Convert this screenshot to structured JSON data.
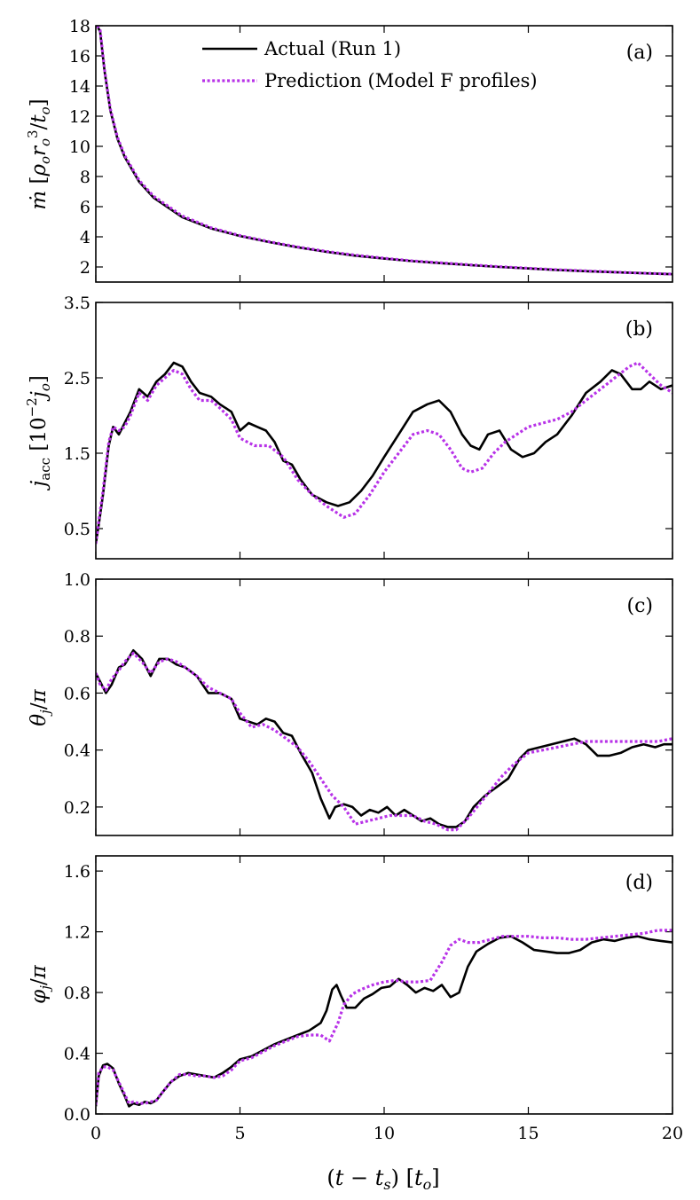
{
  "figure": {
    "xlabel": "(t − t_s) [t_o]",
    "xlim": [
      0,
      20
    ],
    "xticks": [
      0,
      5,
      10,
      15,
      20
    ]
  },
  "legend": {
    "actual_label": "Actual (Run 1)",
    "prediction_label": "Prediction (Model F profiles)",
    "actual_color": "#000000",
    "prediction_color": "#b833e8"
  },
  "chart_data": [
    {
      "type": "line",
      "panel": "(a)",
      "ylabel": "ṁ [ρ_o r_o^3 / t_o]",
      "ylim": [
        1.0,
        18.0
      ],
      "yticks": [
        2,
        4,
        6,
        8,
        10,
        12,
        14,
        16,
        18
      ],
      "series": [
        {
          "name": "Actual (Run 1)",
          "x": [
            0.05,
            0.15,
            0.3,
            0.5,
            0.75,
            1.0,
            1.5,
            2.0,
            3.0,
            4.0,
            5.0,
            6.0,
            7.0,
            8.0,
            9.0,
            10.0,
            11.0,
            12.0,
            13.0,
            14.0,
            15.0,
            16.0,
            17.0,
            18.0,
            19.0,
            20.0
          ],
          "y": [
            18.0,
            17.6,
            15.0,
            12.4,
            10.5,
            9.3,
            7.65,
            6.6,
            5.3,
            4.55,
            4.05,
            3.65,
            3.3,
            3.0,
            2.75,
            2.55,
            2.38,
            2.25,
            2.12,
            2.0,
            1.9,
            1.8,
            1.72,
            1.65,
            1.58,
            1.52
          ]
        },
        {
          "name": "Prediction (Model F profiles)",
          "x": [
            0.05,
            0.15,
            0.3,
            0.5,
            0.75,
            1.0,
            1.5,
            2.0,
            3.0,
            4.0,
            5.0,
            6.0,
            7.0,
            8.0,
            9.0,
            10.0,
            11.0,
            12.0,
            13.0,
            14.0,
            15.0,
            16.0,
            17.0,
            18.0,
            19.0,
            20.0
          ],
          "y": [
            18.0,
            17.7,
            15.1,
            12.5,
            10.6,
            9.4,
            7.75,
            6.7,
            5.38,
            4.6,
            4.08,
            3.68,
            3.33,
            3.03,
            2.78,
            2.58,
            2.4,
            2.27,
            2.14,
            2.02,
            1.92,
            1.82,
            1.74,
            1.66,
            1.59,
            1.53
          ]
        }
      ]
    },
    {
      "type": "line",
      "panel": "(b)",
      "ylabel": "j_acc [10^−2 j_o]",
      "ylim": [
        0.1,
        3.5
      ],
      "yticks": [
        0.5,
        1.5,
        2.5,
        3.5
      ],
      "series": [
        {
          "name": "Actual (Run 1)",
          "x": [
            0.0,
            0.1,
            0.25,
            0.45,
            0.6,
            0.8,
            1.0,
            1.2,
            1.5,
            1.8,
            2.1,
            2.4,
            2.7,
            3.0,
            3.3,
            3.6,
            4.0,
            4.3,
            4.7,
            5.0,
            5.3,
            5.6,
            5.9,
            6.2,
            6.5,
            6.8,
            7.1,
            7.5,
            8.0,
            8.4,
            8.8,
            9.2,
            9.6,
            10.0,
            10.5,
            11.0,
            11.5,
            11.9,
            12.3,
            12.7,
            13.0,
            13.3,
            13.6,
            14.0,
            14.4,
            14.8,
            15.2,
            15.6,
            16.0,
            16.5,
            17.0,
            17.5,
            17.9,
            18.2,
            18.6,
            18.9,
            19.2,
            19.6,
            20.0
          ],
          "y": [
            0.3,
            0.55,
            0.95,
            1.6,
            1.85,
            1.75,
            1.9,
            2.05,
            2.35,
            2.25,
            2.45,
            2.55,
            2.7,
            2.65,
            2.45,
            2.3,
            2.25,
            2.15,
            2.05,
            1.8,
            1.9,
            1.85,
            1.8,
            1.65,
            1.4,
            1.35,
            1.15,
            0.95,
            0.85,
            0.8,
            0.85,
            1.0,
            1.2,
            1.45,
            1.75,
            2.05,
            2.15,
            2.2,
            2.05,
            1.75,
            1.6,
            1.55,
            1.75,
            1.8,
            1.55,
            1.45,
            1.5,
            1.65,
            1.75,
            2.0,
            2.3,
            2.45,
            2.6,
            2.55,
            2.35,
            2.35,
            2.45,
            2.35,
            2.4
          ]
        },
        {
          "name": "Prediction (Model F profiles)",
          "x": [
            0.0,
            0.1,
            0.25,
            0.45,
            0.6,
            0.8,
            1.0,
            1.2,
            1.5,
            1.8,
            2.1,
            2.4,
            2.7,
            3.0,
            3.3,
            3.6,
            4.0,
            4.3,
            4.7,
            5.0,
            5.5,
            6.0,
            6.5,
            7.0,
            7.5,
            8.0,
            8.6,
            9.0,
            9.5,
            10.0,
            10.5,
            11.0,
            11.5,
            11.9,
            12.3,
            12.7,
            13.0,
            13.4,
            13.8,
            14.2,
            14.6,
            15.0,
            15.5,
            16.0,
            16.5,
            17.0,
            17.5,
            18.0,
            18.5,
            18.8,
            19.2,
            19.6,
            20.0
          ],
          "y": [
            0.3,
            0.6,
            1.0,
            1.65,
            1.85,
            1.8,
            1.85,
            2.0,
            2.3,
            2.2,
            2.4,
            2.5,
            2.6,
            2.55,
            2.35,
            2.2,
            2.2,
            2.1,
            1.95,
            1.7,
            1.6,
            1.6,
            1.45,
            1.15,
            0.95,
            0.8,
            0.65,
            0.7,
            0.95,
            1.25,
            1.5,
            1.75,
            1.8,
            1.75,
            1.55,
            1.3,
            1.25,
            1.3,
            1.5,
            1.65,
            1.75,
            1.85,
            1.9,
            1.95,
            2.05,
            2.2,
            2.35,
            2.5,
            2.65,
            2.7,
            2.55,
            2.4,
            2.3
          ]
        }
      ]
    },
    {
      "type": "line",
      "panel": "(c)",
      "ylabel": "θ_j / π",
      "ylim": [
        0.1,
        1.0
      ],
      "yticks": [
        0.2,
        0.4,
        0.6,
        0.8,
        1.0
      ],
      "series": [
        {
          "name": "Actual (Run 1)",
          "x": [
            0.0,
            0.15,
            0.35,
            0.55,
            0.8,
            1.0,
            1.3,
            1.6,
            1.9,
            2.2,
            2.5,
            2.8,
            3.1,
            3.5,
            3.9,
            4.3,
            4.7,
            5.0,
            5.3,
            5.6,
            5.9,
            6.2,
            6.5,
            6.8,
            7.1,
            7.5,
            7.8,
            8.1,
            8.3,
            8.6,
            8.9,
            9.2,
            9.5,
            9.8,
            10.1,
            10.4,
            10.7,
            11.0,
            11.3,
            11.6,
            11.9,
            12.2,
            12.5,
            12.8,
            13.1,
            13.5,
            13.9,
            14.3,
            14.7,
            15.0,
            15.4,
            15.8,
            16.2,
            16.6,
            17.0,
            17.4,
            17.8,
            18.2,
            18.6,
            19.0,
            19.4,
            19.7,
            20.0
          ],
          "y": [
            0.67,
            0.64,
            0.6,
            0.63,
            0.69,
            0.7,
            0.75,
            0.72,
            0.66,
            0.72,
            0.72,
            0.7,
            0.69,
            0.66,
            0.6,
            0.6,
            0.58,
            0.51,
            0.5,
            0.49,
            0.51,
            0.5,
            0.46,
            0.45,
            0.39,
            0.32,
            0.23,
            0.16,
            0.2,
            0.21,
            0.2,
            0.17,
            0.19,
            0.18,
            0.2,
            0.17,
            0.19,
            0.17,
            0.15,
            0.16,
            0.14,
            0.13,
            0.13,
            0.15,
            0.2,
            0.24,
            0.27,
            0.3,
            0.37,
            0.4,
            0.41,
            0.42,
            0.43,
            0.44,
            0.42,
            0.38,
            0.38,
            0.39,
            0.41,
            0.42,
            0.41,
            0.42,
            0.42
          ]
        },
        {
          "name": "Prediction (Model F profiles)",
          "x": [
            0.0,
            0.15,
            0.35,
            0.55,
            0.8,
            1.0,
            1.3,
            1.6,
            1.9,
            2.2,
            2.5,
            2.8,
            3.1,
            3.5,
            3.9,
            4.3,
            4.7,
            5.0,
            5.4,
            5.8,
            6.2,
            6.6,
            7.0,
            7.4,
            7.8,
            8.2,
            8.6,
            9.0,
            9.4,
            9.8,
            10.2,
            10.6,
            11.0,
            11.4,
            11.8,
            12.2,
            12.5,
            12.9,
            13.3,
            13.7,
            14.1,
            14.5,
            15.0,
            15.5,
            16.0,
            16.5,
            17.0,
            17.5,
            18.0,
            18.5,
            19.0,
            19.5,
            20.0
          ],
          "y": [
            0.67,
            0.63,
            0.61,
            0.65,
            0.68,
            0.71,
            0.74,
            0.71,
            0.67,
            0.71,
            0.72,
            0.71,
            0.69,
            0.66,
            0.62,
            0.6,
            0.58,
            0.53,
            0.48,
            0.49,
            0.47,
            0.44,
            0.41,
            0.36,
            0.3,
            0.24,
            0.2,
            0.14,
            0.15,
            0.16,
            0.17,
            0.17,
            0.17,
            0.15,
            0.14,
            0.12,
            0.12,
            0.16,
            0.21,
            0.26,
            0.31,
            0.35,
            0.39,
            0.4,
            0.41,
            0.42,
            0.43,
            0.43,
            0.43,
            0.43,
            0.43,
            0.43,
            0.44
          ]
        }
      ]
    },
    {
      "type": "line",
      "panel": "(d)",
      "ylabel": "φ_j / π",
      "ylim": [
        0.0,
        1.7
      ],
      "yticks": [
        0.0,
        0.4,
        0.8,
        1.2,
        1.6
      ],
      "series": [
        {
          "name": "Actual (Run 1)",
          "x": [
            0.0,
            0.1,
            0.25,
            0.4,
            0.6,
            0.8,
            1.0,
            1.15,
            1.3,
            1.5,
            1.7,
            1.9,
            2.1,
            2.3,
            2.6,
            2.9,
            3.2,
            3.5,
            3.8,
            4.1,
            4.4,
            4.7,
            5.0,
            5.4,
            5.8,
            6.2,
            6.6,
            7.0,
            7.4,
            7.8,
            8.0,
            8.2,
            8.35,
            8.5,
            8.7,
            9.0,
            9.3,
            9.6,
            9.9,
            10.2,
            10.5,
            10.8,
            11.1,
            11.4,
            11.7,
            12.0,
            12.3,
            12.6,
            12.9,
            13.2,
            13.6,
            14.0,
            14.4,
            14.8,
            15.2,
            15.6,
            16.0,
            16.4,
            16.8,
            17.2,
            17.6,
            18.0,
            18.4,
            18.8,
            19.2,
            19.6,
            20.0
          ],
          "y": [
            0.05,
            0.25,
            0.32,
            0.33,
            0.3,
            0.2,
            0.12,
            0.05,
            0.07,
            0.06,
            0.08,
            0.07,
            0.09,
            0.14,
            0.21,
            0.25,
            0.27,
            0.26,
            0.25,
            0.24,
            0.27,
            0.31,
            0.36,
            0.38,
            0.42,
            0.46,
            0.49,
            0.52,
            0.55,
            0.6,
            0.68,
            0.82,
            0.85,
            0.78,
            0.7,
            0.7,
            0.76,
            0.79,
            0.83,
            0.84,
            0.89,
            0.85,
            0.8,
            0.83,
            0.81,
            0.85,
            0.77,
            0.8,
            0.97,
            1.07,
            1.12,
            1.16,
            1.17,
            1.13,
            1.08,
            1.07,
            1.06,
            1.06,
            1.08,
            1.13,
            1.15,
            1.14,
            1.16,
            1.17,
            1.15,
            1.14,
            1.13
          ]
        },
        {
          "name": "Prediction (Model F profiles)",
          "x": [
            0.0,
            0.1,
            0.25,
            0.4,
            0.6,
            0.8,
            1.0,
            1.15,
            1.3,
            1.5,
            1.7,
            1.9,
            2.1,
            2.3,
            2.6,
            2.9,
            3.2,
            3.5,
            3.8,
            4.1,
            4.4,
            4.7,
            5.0,
            5.4,
            5.8,
            6.2,
            6.6,
            7.0,
            7.4,
            7.8,
            8.1,
            8.4,
            8.6,
            8.9,
            9.2,
            9.6,
            10.0,
            10.4,
            10.8,
            11.2,
            11.6,
            12.0,
            12.3,
            12.6,
            12.9,
            13.3,
            13.7,
            14.1,
            14.5,
            15.0,
            15.5,
            16.0,
            16.5,
            17.0,
            17.5,
            18.0,
            18.5,
            19.0,
            19.5,
            20.0
          ],
          "y": [
            0.06,
            0.27,
            0.31,
            0.31,
            0.29,
            0.21,
            0.13,
            0.07,
            0.08,
            0.07,
            0.07,
            0.08,
            0.09,
            0.14,
            0.21,
            0.26,
            0.26,
            0.25,
            0.25,
            0.24,
            0.25,
            0.29,
            0.35,
            0.37,
            0.41,
            0.45,
            0.48,
            0.51,
            0.52,
            0.52,
            0.48,
            0.6,
            0.72,
            0.79,
            0.82,
            0.85,
            0.87,
            0.88,
            0.87,
            0.87,
            0.88,
            1.0,
            1.11,
            1.15,
            1.13,
            1.13,
            1.15,
            1.17,
            1.17,
            1.17,
            1.16,
            1.16,
            1.15,
            1.15,
            1.16,
            1.17,
            1.18,
            1.19,
            1.21,
            1.21
          ]
        }
      ]
    }
  ]
}
